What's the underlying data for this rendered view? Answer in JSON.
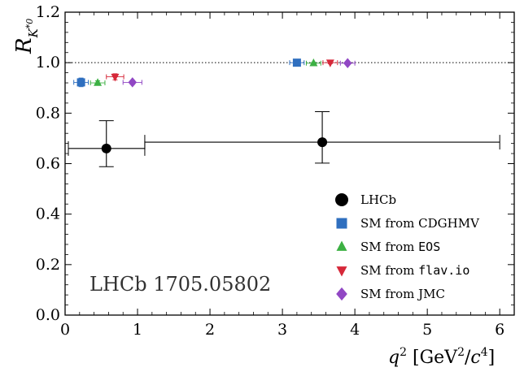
{
  "chart_data": {
    "type": "scatter",
    "title": "",
    "xlabel": "q² [GeV²/c⁴]",
    "ylabel": "R_K*0",
    "xlim": [
      0,
      6.2
    ],
    "ylim": [
      0,
      1.2
    ],
    "xticks": [
      0,
      1,
      2,
      3,
      4,
      5,
      6
    ],
    "yticks": [
      0.0,
      0.2,
      0.4,
      0.6,
      0.8,
      1.0,
      1.2
    ],
    "x_tick_labels": [
      "0",
      "1",
      "2",
      "3",
      "4",
      "5",
      "6"
    ],
    "y_tick_labels": [
      "0.0",
      "0.2",
      "0.4",
      "0.6",
      "0.8",
      "1.0",
      "1.2"
    ],
    "reference_line": {
      "y": 1.0,
      "style": "dotted"
    },
    "grid": false,
    "legend_position": "lower-right",
    "annotation": "LHCb 1705.05802",
    "series": [
      {
        "name": "LHCb",
        "marker": "circle",
        "color": "#000000",
        "points": [
          {
            "x": 0.57,
            "y": 0.66,
            "xlo": 0.045,
            "xhi": 1.1,
            "ylo": 0.588,
            "yhi": 0.77
          },
          {
            "x": 3.55,
            "y": 0.685,
            "xlo": 1.1,
            "xhi": 6.0,
            "ylo": 0.602,
            "yhi": 0.806
          }
        ]
      },
      {
        "name": "SM from CDGHMV",
        "marker": "square",
        "color": "#2f6fbf",
        "points": [
          {
            "x": 0.22,
            "y": 0.922,
            "xlo": 0.12,
            "xhi": 0.32,
            "ylo": 0.905,
            "yhi": 0.939
          },
          {
            "x": 3.2,
            "y": 1.0,
            "xlo": 3.1,
            "xhi": 3.3,
            "ylo": 0.995,
            "yhi": 1.005
          }
        ]
      },
      {
        "name": "SM from EOS",
        "label_prefix": "SM from ",
        "label_code": "EOS",
        "marker": "triangle-up",
        "color": "#3cb043",
        "points": [
          {
            "x": 0.45,
            "y": 0.92,
            "xlo": 0.35,
            "xhi": 0.55,
            "ylo": 0.912,
            "yhi": 0.928
          },
          {
            "x": 3.43,
            "y": 0.998,
            "xlo": 3.33,
            "xhi": 3.53,
            "ylo": 0.995,
            "yhi": 1.001
          }
        ]
      },
      {
        "name": "SM from flav.io",
        "label_prefix": "SM from ",
        "label_code": "flav.io",
        "marker": "triangle-down",
        "color": "#d62839",
        "points": [
          {
            "x": 0.69,
            "y": 0.944,
            "xlo": 0.57,
            "xhi": 0.81,
            "ylo": 0.932,
            "yhi": 0.956
          },
          {
            "x": 3.66,
            "y": 1.0,
            "xlo": 3.56,
            "xhi": 3.76,
            "ylo": 0.996,
            "yhi": 1.004
          }
        ]
      },
      {
        "name": "SM from JMC",
        "marker": "diamond",
        "color": "#9147c4",
        "points": [
          {
            "x": 0.93,
            "y": 0.922,
            "xlo": 0.8,
            "xhi": 1.06,
            "ylo": 0.914,
            "yhi": 0.93
          },
          {
            "x": 3.9,
            "y": 0.998,
            "xlo": 3.8,
            "xhi": 4.0,
            "ylo": 0.994,
            "yhi": 1.002
          }
        ]
      }
    ]
  }
}
